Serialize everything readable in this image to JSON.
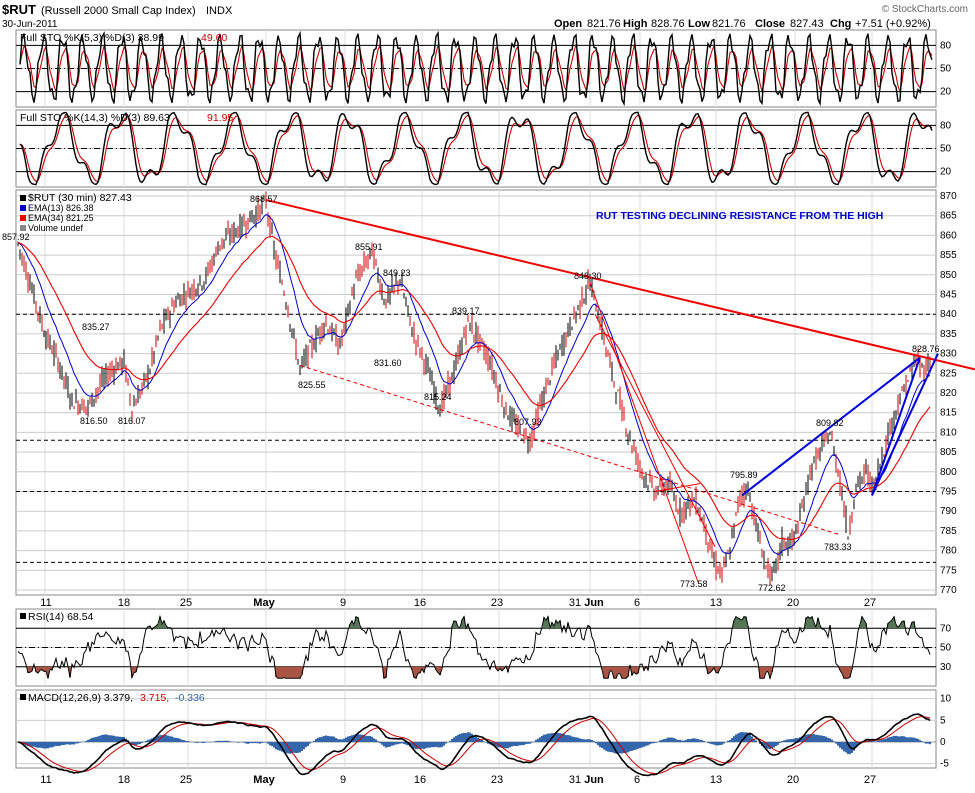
{
  "header": {
    "symbol": "$RUT",
    "name": "(Russell 2000 Small Cap Index)",
    "exchange": "INDX",
    "date": "30-Jun-2011",
    "watermark": "© StockCharts.com",
    "open_label": "Open",
    "open": "821.76",
    "high_label": "High",
    "high": "828.76",
    "low_label": "Low",
    "low": "821.76",
    "close_label": "Close",
    "close": "827.43",
    "chg_label": "Chg",
    "chg": "+7.51 (+0.92%)"
  },
  "colors": {
    "price_up": "#000000",
    "price_down": "#cc0000",
    "ema13": "#0000cc",
    "ema34": "#ee0000",
    "trend_red": "#ee0000",
    "trend_blue": "#0000dd",
    "annotation": "#0000cc",
    "rsi_fill": "#557755",
    "macd_hist": "#3366aa",
    "grid": "#bbbbbb"
  },
  "chart_data": [
    {
      "type": "line",
      "panel": "stoch_fast",
      "legend": "Full STO %K(5,3) %D(3) 38.99",
      "legend_d": "49.60",
      "ylim": [
        0,
        100
      ],
      "yticks": [
        20,
        50,
        80
      ],
      "series": [
        {
          "name": "%K",
          "last": 38.99
        },
        {
          "name": "%D",
          "last": 49.6
        }
      ]
    },
    {
      "type": "line",
      "panel": "stoch_slow",
      "legend": "Full STO %K(14,3) %D(3) 89.63",
      "legend_d": "91.95",
      "ylim": [
        0,
        100
      ],
      "yticks": [
        20,
        50,
        80
      ],
      "series": [
        {
          "name": "%K",
          "last": 89.63
        },
        {
          "name": "%D",
          "last": 91.95
        }
      ]
    },
    {
      "type": "line",
      "panel": "price",
      "legend_price": "$RUT (30 min) 827.43",
      "legend_ema13": "EMA(13) 826.38",
      "legend_ema34": "EMA(34) 821.25",
      "legend_volume": "Volume undef",
      "annotation": "RUT TESTING DECLINING RESISTANCE FROM THE HIGH",
      "ylim": [
        770,
        870
      ],
      "yticks": [
        770,
        775,
        780,
        785,
        790,
        795,
        800,
        805,
        810,
        815,
        820,
        825,
        830,
        835,
        840,
        845,
        850,
        855,
        860,
        865,
        870
      ],
      "x_ticks": [
        "11",
        "18",
        "25",
        "May",
        "9",
        "16",
        "23",
        "31",
        "Jun",
        "6",
        "13",
        "20",
        "27"
      ],
      "x": [
        0,
        6,
        10,
        12,
        14,
        16,
        18,
        20,
        22,
        24,
        26,
        28,
        30,
        32,
        34,
        36,
        38,
        40,
        42,
        44,
        46,
        48,
        50,
        52,
        54,
        56,
        58,
        60,
        62,
        64,
        66,
        68,
        70,
        72,
        74,
        76,
        78,
        80,
        82,
        84,
        86,
        88,
        90,
        92,
        94,
        96,
        98,
        100,
        102,
        104,
        106,
        108,
        110,
        112,
        114,
        116,
        118,
        120,
        122,
        124,
        126,
        128,
        130,
        132,
        134,
        136,
        138,
        140,
        142,
        144,
        146,
        148,
        150,
        152,
        154,
        156,
        158,
        160,
        162,
        164,
        166,
        168,
        170,
        172,
        174,
        176,
        178,
        180,
        182,
        184,
        186,
        188,
        190,
        192,
        194,
        196,
        198,
        200,
        202,
        204,
        206,
        208,
        210,
        212,
        214,
        216,
        218,
        220,
        222,
        224,
        226,
        228,
        230,
        232,
        234,
        236,
        238,
        240,
        242,
        244,
        246,
        248,
        250,
        252,
        254,
        256,
        258,
        260,
        262,
        264,
        266,
        268,
        270,
        272,
        274,
        276,
        278,
        280,
        282,
        284,
        286,
        288,
        290,
        292,
        294,
        296,
        298,
        300,
        302,
        304,
        306,
        308,
        310,
        312,
        314,
        316,
        318,
        320,
        322,
        324,
        326,
        328,
        330,
        332,
        334,
        336,
        338,
        340,
        342,
        344,
        346,
        348,
        350,
        352,
        354,
        356,
        358,
        360,
        362,
        364,
        366,
        368,
        370,
        372,
        374,
        376,
        378,
        380,
        382,
        384,
        386,
        388,
        390,
        392,
        394,
        396,
        398,
        400,
        402,
        404,
        406,
        408,
        410,
        412,
        414,
        416,
        418,
        420,
        422,
        424,
        426,
        428,
        430,
        432,
        434,
        436,
        438,
        440,
        442,
        444,
        446,
        448,
        450,
        452,
        454,
        456,
        458,
        460,
        462,
        464,
        466,
        468,
        470,
        472,
        474,
        476,
        478,
        480,
        482,
        484,
        486,
        488,
        490,
        492,
        494,
        496,
        498,
        500,
        502,
        504,
        506,
        508,
        510,
        512,
        514,
        516,
        518,
        520,
        522,
        524,
        526,
        528,
        530,
        532,
        534,
        536,
        538,
        540,
        542,
        544,
        546,
        548,
        550,
        552,
        554,
        556,
        558,
        560,
        562,
        564,
        566,
        568,
        570,
        572,
        574,
        576,
        578,
        580,
        582,
        584,
        586,
        588,
        590,
        592,
        594,
        596,
        598,
        600,
        602,
        604,
        606,
        608,
        610,
        612,
        614,
        616,
        618,
        620,
        622,
        624,
        626,
        628,
        630,
        632,
        634,
        636,
        638,
        640,
        642,
        644,
        646,
        648,
        650,
        652,
        654,
        656,
        658,
        660,
        662,
        664,
        666,
        668,
        670,
        672,
        674,
        676,
        678,
        680,
        682,
        684,
        686,
        688,
        690,
        692,
        694,
        696,
        698,
        700,
        702,
        704,
        706,
        708,
        710,
        712,
        714,
        716,
        718,
        720,
        722,
        724,
        726,
        728,
        730,
        732,
        734,
        736,
        738,
        740,
        742,
        744,
        746,
        748,
        750,
        752,
        754,
        756,
        758,
        760,
        762,
        764,
        766,
        768,
        770,
        772,
        774,
        776,
        778,
        780,
        782,
        784,
        786,
        788,
        790,
        792,
        794,
        796,
        798,
        800,
        802,
        804,
        806,
        808,
        810,
        812,
        814,
        816,
        818,
        820,
        822,
        824,
        826,
        828,
        830,
        832,
        834,
        836,
        838,
        840,
        842,
        844,
        846,
        848,
        850,
        852,
        854,
        856,
        858,
        860,
        862,
        864,
        866,
        868,
        870,
        872,
        874,
        876,
        878,
        880,
        882,
        884,
        886,
        888,
        890,
        892,
        894,
        896,
        898,
        900,
        902,
        904,
        906,
        908,
        910,
        912,
        914
      ],
      "annotated_points": [
        {
          "label": "857.92",
          "value": 857.92
        },
        {
          "label": "835.27",
          "value": 835.27
        },
        {
          "label": "816.50",
          "value": 816.5
        },
        {
          "label": "816.07",
          "value": 816.07
        },
        {
          "label": "868.57",
          "value": 868.57
        },
        {
          "label": "825.55",
          "value": 825.55
        },
        {
          "label": "855.91",
          "value": 855.91
        },
        {
          "label": "849.23",
          "value": 849.23
        },
        {
          "label": "831.60",
          "value": 831.6
        },
        {
          "label": "839.17",
          "value": 839.17
        },
        {
          "label": "815.24",
          "value": 815.24
        },
        {
          "label": "807.93",
          "value": 807.93
        },
        {
          "label": "848.30",
          "value": 848.3
        },
        {
          "label": "795.89",
          "value": 795.89
        },
        {
          "label": "773.58",
          "value": 773.58
        },
        {
          "label": "772.62",
          "value": 772.62
        },
        {
          "label": "809.82",
          "value": 809.82
        },
        {
          "label": "783.33",
          "value": 783.33
        },
        {
          "label": "828.76",
          "value": 828.76
        }
      ],
      "horizontal_levels": [
        840,
        808,
        795,
        777
      ]
    },
    {
      "type": "line",
      "panel": "rsi",
      "legend": "RSI(14) 68.54",
      "ylim": [
        10,
        90
      ],
      "yticks": [
        30,
        50,
        70
      ]
    },
    {
      "type": "line",
      "panel": "macd",
      "legend": "MACD(12,26,9) 3.379,",
      "legend_signal": "3.715,",
      "legend_hist": "-0.336",
      "ylim": [
        -6,
        12
      ],
      "yticks": [
        -5,
        0,
        5,
        10
      ]
    }
  ]
}
